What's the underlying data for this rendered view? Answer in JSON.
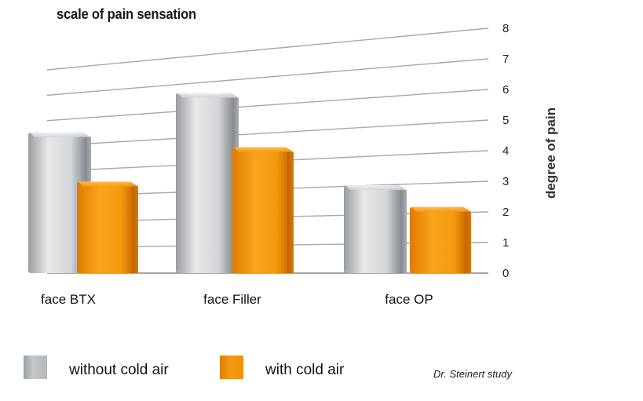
{
  "chart_data": {
    "type": "bar",
    "title": "scale of pain sensation",
    "ylabel": "degree of pain",
    "xlabel": "",
    "ylim": [
      0,
      8
    ],
    "yticks": [
      0,
      1,
      2,
      3,
      4,
      5,
      6,
      7,
      8
    ],
    "grid": true,
    "categories": [
      "face BTX",
      "face Filler",
      "face OP"
    ],
    "series": [
      {
        "name": "without cold air",
        "color": "#b9bcbf",
        "values": [
          5.5,
          6.6,
          3.0
        ]
      },
      {
        "name": "with cold air",
        "color": "#f39a12",
        "values": [
          3.5,
          4.5,
          2.2
        ]
      }
    ],
    "legend_position": "bottom",
    "source": "Dr. Steinert study"
  }
}
